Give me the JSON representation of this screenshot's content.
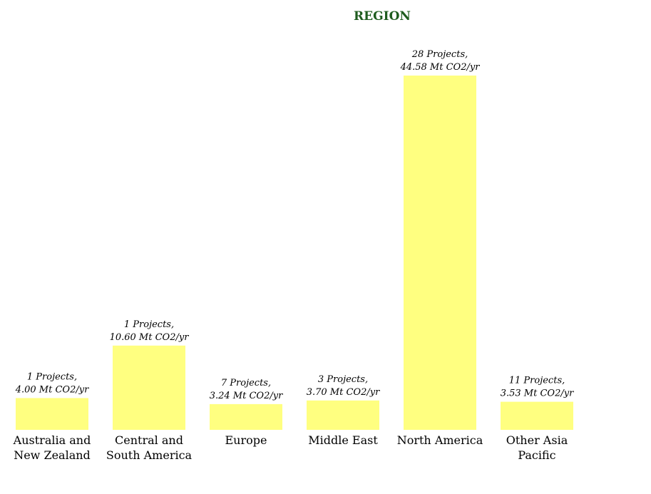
{
  "chart_data": {
    "type": "bar",
    "title": "REGION",
    "xlabel": "",
    "ylabel": "",
    "grid": false,
    "legend": "none",
    "categories": [
      [
        "Australia and",
        "New Zealand"
      ],
      [
        "Central and",
        "South America"
      ],
      [
        "Europe"
      ],
      [
        "Middle East"
      ],
      [
        "North America"
      ],
      [
        "Other Asia",
        "Pacific"
      ]
    ],
    "values": [
      4.0,
      10.6,
      3.24,
      3.7,
      44.58,
      3.53
    ],
    "projects": [
      1,
      1,
      7,
      3,
      28,
      11
    ],
    "data_labels": [
      [
        "1 Projects,",
        "4.00 Mt CO2/yr"
      ],
      [
        "1 Projects,",
        "10.60 Mt CO2/yr"
      ],
      [
        "7 Projects,",
        "3.24 Mt CO2/yr"
      ],
      [
        "3 Projects,",
        "3.70 Mt CO2/yr"
      ],
      [
        "28 Projects,",
        "44.58 Mt CO2/yr"
      ],
      [
        "11 Projects,",
        "3.53 Mt CO2/yr"
      ]
    ],
    "ylim": [
      0,
      44.58
    ],
    "colors": {
      "bar": "#ffff80",
      "title": "#1f5c1f",
      "text": "#000000"
    }
  }
}
